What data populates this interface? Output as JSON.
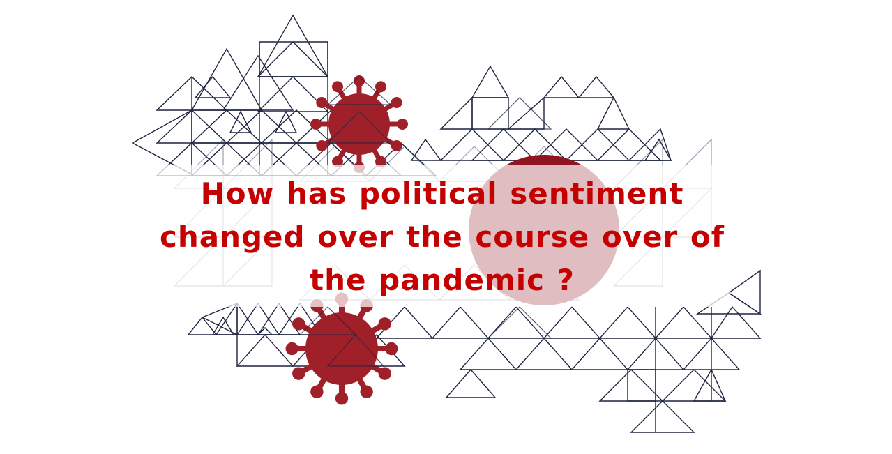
{
  "headline": {
    "lines": [
      "How has political sentiment",
      "changed over the course over of",
      "the pandemic ?"
    ]
  },
  "colors": {
    "text": "#c40000",
    "virus": "#9b1b24",
    "lattice": "#1f2440",
    "background": "#ffffff"
  },
  "graphic": {
    "icon": "coronavirus-icon",
    "pattern": "triangle-lattice-icon"
  }
}
